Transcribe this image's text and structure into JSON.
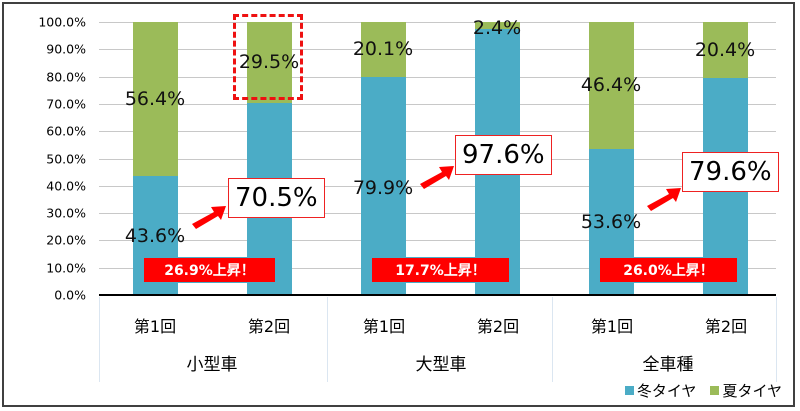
{
  "chart_data": {
    "type": "bar",
    "stacked": true,
    "title": "",
    "xlabel": "",
    "ylabel": "",
    "ylim": [
      0,
      100
    ],
    "grid": true,
    "legend_position": "bottom-right",
    "y_ticks": [
      "0.0%",
      "10.0%",
      "20.0%",
      "30.0%",
      "40.0%",
      "50.0%",
      "60.0%",
      "70.0%",
      "80.0%",
      "90.0%",
      "100.0%"
    ],
    "groups": [
      "小型車",
      "大型車",
      "全車種"
    ],
    "categories": [
      "第1回",
      "第2回",
      "第1回",
      "第2回",
      "第1回",
      "第2回"
    ],
    "series": [
      {
        "name": "冬タイヤ",
        "color": "#4bacc6",
        "values": [
          43.6,
          70.5,
          79.9,
          97.6,
          53.6,
          79.6
        ]
      },
      {
        "name": "夏タイヤ",
        "color": "#9bbb59",
        "values": [
          56.4,
          29.5,
          20.1,
          2.4,
          46.4,
          20.4
        ]
      }
    ],
    "annotations": [
      {
        "group": "小型車",
        "from": "43.6%",
        "to": "70.5%",
        "rise": "26.9%上昇！",
        "highlight": "29.5%"
      },
      {
        "group": "大型車",
        "from": "79.9%",
        "to": "97.6%",
        "rise": "17.7%上昇！"
      },
      {
        "group": "全車種",
        "from": "53.6%",
        "to": "79.6%",
        "rise": "26.0%上昇！"
      }
    ]
  },
  "axis": {
    "y": [
      "0.0%",
      "10.0%",
      "20.0%",
      "30.0%",
      "40.0%",
      "50.0%",
      "60.0%",
      "70.0%",
      "80.0%",
      "90.0%",
      "100.0%"
    ]
  },
  "bars": [
    {
      "sub": "第1回",
      "winter": 43.6,
      "summer": 56.4,
      "winter_label": "43.6%",
      "summer_label": "56.4%"
    },
    {
      "sub": "第2回",
      "winter": 70.5,
      "summer": 29.5,
      "winter_label": "70.5%",
      "summer_label": "29.5%"
    },
    {
      "sub": "第1回",
      "winter": 79.9,
      "summer": 20.1,
      "winter_label": "79.9%",
      "summer_label": "20.1%"
    },
    {
      "sub": "第2回",
      "winter": 97.6,
      "summer": 2.4,
      "winter_label": "97.6%",
      "summer_label": "2.4%"
    },
    {
      "sub": "第1回",
      "winter": 53.6,
      "summer": 46.4,
      "winter_label": "53.6%",
      "summer_label": "46.4%"
    },
    {
      "sub": "第2回",
      "winter": 79.6,
      "summer": 20.4,
      "winter_label": "79.6%",
      "summer_label": "20.4%"
    }
  ],
  "groups": [
    {
      "label": "小型車",
      "rise": "26.9%上昇！"
    },
    {
      "label": "大型車",
      "rise": "17.7%上昇！"
    },
    {
      "label": "全車種",
      "rise": "26.0%上昇！"
    }
  ],
  "legend": {
    "winter": "冬タイヤ",
    "summer": "夏タイヤ"
  },
  "colors": {
    "winter": "#4bacc6",
    "summer": "#9bbb59",
    "highlight": "#ff0000"
  }
}
